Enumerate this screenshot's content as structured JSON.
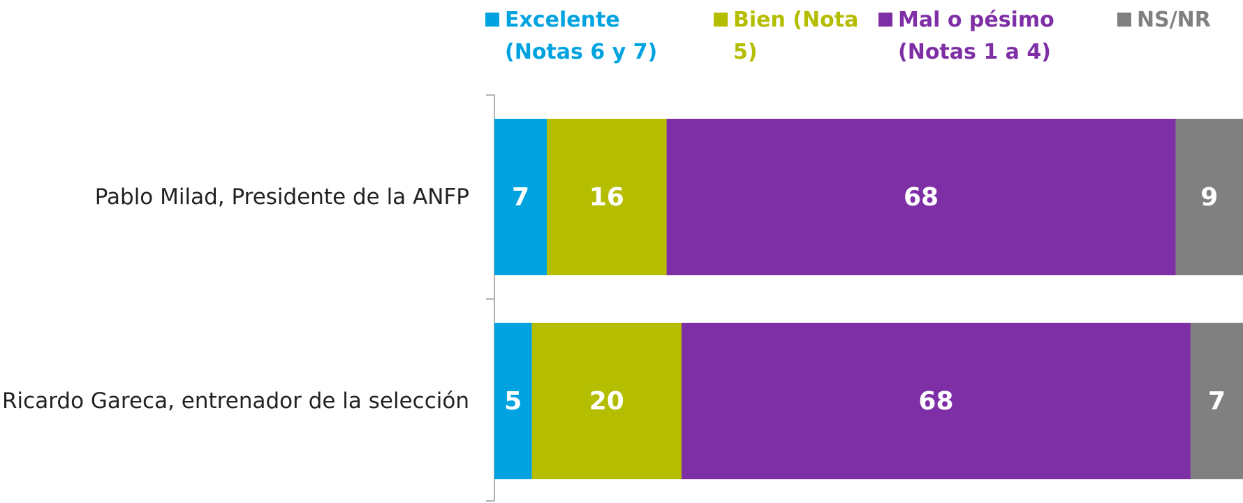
{
  "chart_data": {
    "type": "stacked_barh",
    "categories": [
      "Pablo Milad, Presidente de la ANFP",
      "Ricardo Gareca, entrenador de la selección"
    ],
    "series": [
      {
        "name": "Excelente (Notas 6 y 7)",
        "color": "#00a3e0",
        "values": [
          7,
          5
        ]
      },
      {
        "name": "Bien (Nota 5)",
        "color": "#b5bd00",
        "values": [
          16,
          20
        ]
      },
      {
        "name": "Mal o pésimo (Notas 1 a 4)",
        "color": "#7f2fa6",
        "values": [
          68,
          68
        ]
      },
      {
        "name": "NS/NR",
        "color": "#808080",
        "values": [
          9,
          7
        ]
      }
    ],
    "xlim": [
      0,
      100
    ],
    "legend": "top"
  }
}
